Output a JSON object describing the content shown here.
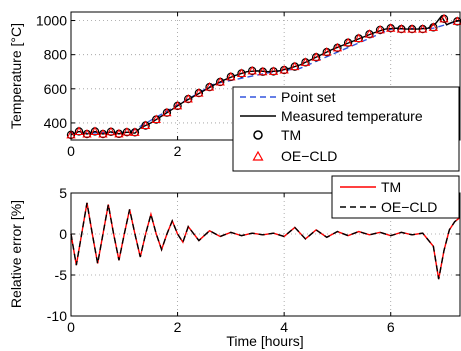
{
  "chart_data": [
    {
      "type": "line",
      "ylabel": "Temperature [°C]",
      "xlim": [
        0,
        7.3
      ],
      "ylim": [
        300,
        1050
      ],
      "xticks": [
        0,
        2,
        4,
        6
      ],
      "yticks": [
        400,
        600,
        800,
        1000
      ],
      "grid": true,
      "legend_position": "lower-right",
      "colors": {
        "point_set": "#3355dd",
        "measured": "#000000",
        "tm": "#000000",
        "oe_cld": "#ff0000"
      },
      "series": [
        {
          "name": "Point set",
          "style": "dashed",
          "x": [
            0,
            1.1,
            1.3,
            2.7,
            3.8,
            4.3,
            6.0,
            6.8,
            7.3
          ],
          "y": [
            340,
            345,
            380,
            630,
            700,
            720,
            950,
            955,
            1000
          ]
        },
        {
          "name": "Measured temperature",
          "style": "solid",
          "x": [
            0,
            0.15,
            0.3,
            0.45,
            0.6,
            0.75,
            0.9,
            1.05,
            1.2,
            1.3,
            1.5,
            1.7,
            1.9,
            2.1,
            2.3,
            2.5,
            2.7,
            2.9,
            3.1,
            3.3,
            3.5,
            3.7,
            3.9,
            4.1,
            4.3,
            4.5,
            4.7,
            4.9,
            5.1,
            5.3,
            5.5,
            5.7,
            5.9,
            6.1,
            6.3,
            6.5,
            6.7,
            6.85,
            6.95,
            7.05,
            7.15,
            7.3
          ],
          "y": [
            330,
            350,
            335,
            350,
            335,
            348,
            336,
            346,
            340,
            370,
            400,
            440,
            480,
            520,
            555,
            590,
            625,
            655,
            680,
            700,
            705,
            700,
            705,
            720,
            740,
            770,
            800,
            830,
            855,
            880,
            905,
            930,
            950,
            955,
            950,
            950,
            955,
            985,
            1025,
            975,
            990,
            1000
          ]
        },
        {
          "name": "TM",
          "style": "marker-circle",
          "x": [
            0,
            0.15,
            0.3,
            0.45,
            0.6,
            0.75,
            0.9,
            1.05,
            1.2,
            1.4,
            1.6,
            1.8,
            2.0,
            2.2,
            2.4,
            2.6,
            2.8,
            3.0,
            3.2,
            3.4,
            3.6,
            3.8,
            4.0,
            4.2,
            4.4,
            4.6,
            4.8,
            5.0,
            5.2,
            5.4,
            5.6,
            5.8,
            6.0,
            6.2,
            6.4,
            6.6,
            6.8,
            7.0,
            7.25
          ],
          "y": [
            330,
            350,
            335,
            350,
            335,
            348,
            336,
            346,
            345,
            385,
            420,
            460,
            500,
            540,
            575,
            610,
            640,
            670,
            690,
            705,
            700,
            702,
            710,
            730,
            755,
            785,
            815,
            840,
            870,
            895,
            920,
            945,
            955,
            950,
            950,
            950,
            960,
            1010,
            995
          ]
        },
        {
          "name": "OE−CLD",
          "style": "marker-triangle",
          "x": [
            0,
            0.15,
            0.3,
            0.45,
            0.6,
            0.75,
            0.9,
            1.05,
            1.2,
            1.4,
            1.6,
            1.8,
            2.0,
            2.2,
            2.4,
            2.6,
            2.8,
            3.0,
            3.2,
            3.4,
            3.6,
            3.8,
            4.0,
            4.2,
            4.4,
            4.6,
            4.8,
            5.0,
            5.2,
            5.4,
            5.6,
            5.8,
            6.0,
            6.2,
            6.4,
            6.6,
            6.8,
            7.0,
            7.25
          ],
          "y": [
            330,
            350,
            335,
            350,
            335,
            348,
            336,
            346,
            345,
            385,
            420,
            460,
            500,
            540,
            575,
            610,
            640,
            670,
            690,
            705,
            700,
            702,
            710,
            730,
            755,
            785,
            815,
            840,
            870,
            895,
            920,
            945,
            955,
            950,
            950,
            950,
            960,
            1010,
            995
          ]
        }
      ]
    },
    {
      "type": "line",
      "xlabel": "Time [hours]",
      "ylabel": "Relative error [%]",
      "xlim": [
        0,
        7.3
      ],
      "ylim": [
        -10,
        5
      ],
      "xticks": [
        0,
        2,
        4,
        6
      ],
      "yticks": [
        -10,
        -5,
        0,
        5
      ],
      "grid": true,
      "legend_position": "top-right",
      "colors": {
        "tm": "#ff0000",
        "oe_cld": "#000000"
      },
      "series": [
        {
          "name": "TM",
          "style": "solid",
          "x": [
            0,
            0.1,
            0.2,
            0.3,
            0.4,
            0.5,
            0.6,
            0.7,
            0.8,
            0.9,
            1.0,
            1.1,
            1.2,
            1.3,
            1.4,
            1.5,
            1.6,
            1.7,
            1.8,
            1.9,
            2.0,
            2.1,
            2.2,
            2.4,
            2.6,
            2.8,
            3.0,
            3.2,
            3.4,
            3.6,
            3.8,
            4.0,
            4.2,
            4.4,
            4.6,
            4.8,
            5.0,
            5.2,
            5.4,
            5.6,
            5.8,
            6.0,
            6.2,
            6.4,
            6.6,
            6.8,
            6.9,
            7.0,
            7.1,
            7.2,
            7.3
          ],
          "y": [
            0,
            -3.8,
            0,
            3.8,
            0,
            -3.6,
            0,
            3.6,
            0,
            -3.2,
            0,
            3.0,
            0,
            -2.8,
            0,
            2.4,
            0,
            -1.9,
            0,
            1.6,
            0,
            -1.0,
            0.9,
            -0.8,
            0.4,
            -0.3,
            0.2,
            -0.2,
            0.1,
            -0.1,
            0.1,
            -0.3,
            0.8,
            -0.6,
            0.5,
            -0.4,
            0.3,
            -0.2,
            0.3,
            -0.1,
            0.2,
            -0.2,
            0.2,
            -0.1,
            0.1,
            -1.5,
            -5.5,
            -2.0,
            0.5,
            1.5,
            2.0
          ]
        },
        {
          "name": "OE−CLD",
          "style": "dashed",
          "x": [
            0,
            0.1,
            0.2,
            0.3,
            0.4,
            0.5,
            0.6,
            0.7,
            0.8,
            0.9,
            1.0,
            1.1,
            1.2,
            1.3,
            1.4,
            1.5,
            1.6,
            1.7,
            1.8,
            1.9,
            2.0,
            2.1,
            2.2,
            2.4,
            2.6,
            2.8,
            3.0,
            3.2,
            3.4,
            3.6,
            3.8,
            4.0,
            4.2,
            4.4,
            4.6,
            4.8,
            5.0,
            5.2,
            5.4,
            5.6,
            5.8,
            6.0,
            6.2,
            6.4,
            6.6,
            6.8,
            6.9,
            7.0,
            7.1,
            7.2,
            7.3
          ],
          "y": [
            0,
            -3.8,
            0,
            3.8,
            0,
            -3.6,
            0,
            3.6,
            0,
            -3.2,
            0,
            3.0,
            0,
            -2.8,
            0,
            2.4,
            0,
            -1.9,
            0,
            1.6,
            0,
            -1.0,
            0.9,
            -0.8,
            0.4,
            -0.3,
            0.2,
            -0.2,
            0.1,
            -0.1,
            0.1,
            -0.3,
            0.8,
            -0.6,
            0.5,
            -0.4,
            0.3,
            -0.2,
            0.3,
            -0.1,
            0.2,
            -0.2,
            0.2,
            -0.1,
            0.1,
            -1.5,
            -5.5,
            -2.0,
            0.5,
            1.5,
            2.0
          ]
        }
      ]
    }
  ]
}
